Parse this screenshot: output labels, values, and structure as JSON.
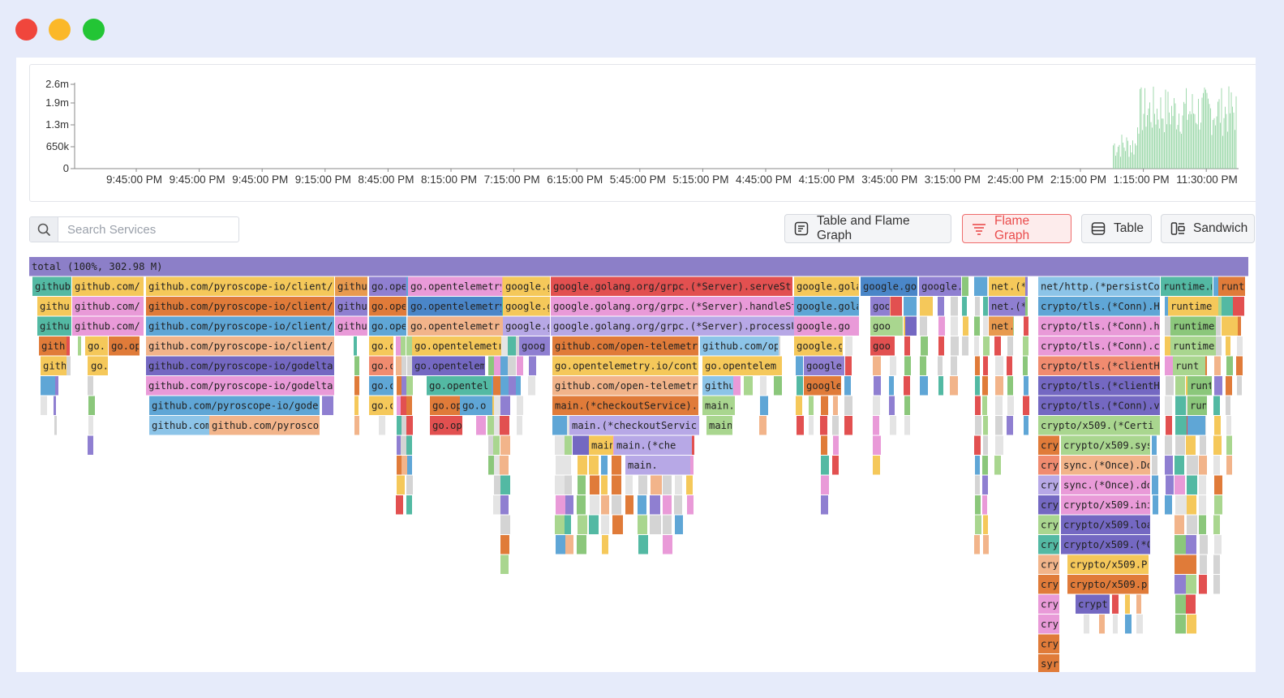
{
  "colors": {
    "active_accent": "#ea4c4c",
    "timeline_bar": "#8fd3a0",
    "total_bar": "#8c7fc8"
  },
  "timeline": {
    "y_ticks": [
      "2.6m",
      "1.9m",
      "1.3m",
      "650k",
      "0"
    ],
    "x_ticks": [
      "9:45:00 PM",
      "9:45:00 PM",
      "9:45:00 PM",
      "9:15:00 PM",
      "8:45:00 PM",
      "8:15:00 PM",
      "7:15:00 PM",
      "6:15:00 PM",
      "5:45:00 PM",
      "5:15:00 PM",
      "4:45:00 PM",
      "4:15:00 PM",
      "3:45:00 PM",
      "3:15:00 PM",
      "2:45:00 PM",
      "2:15:00 PM",
      "1:15:00 PM",
      "11:30:00 PM"
    ]
  },
  "search": {
    "placeholder": "Search Services",
    "icon": "search-icon"
  },
  "view_buttons": [
    {
      "label": "Table and Flame Graph",
      "icon": "table-flame-icon",
      "active": false
    },
    {
      "label": "Flame Graph",
      "icon": "flame-graph-icon",
      "active": true
    },
    {
      "label": "Table",
      "icon": "table-icon",
      "active": false
    },
    {
      "label": "Sandwich",
      "icon": "sandwich-icon",
      "active": false
    }
  ],
  "flamegraph": {
    "total_label": "total (100%, 302.98 M)",
    "labels": [
      "github",
      "github.com/",
      "github.com/pyroscope-io/client/py",
      "githu",
      "go.ope",
      "go.opentelemetry",
      "google.g",
      "google.golang.org/grpc.(*Server).serveStre",
      "google.gola",
      "google.go",
      "google.",
      "net.(*",
      "net/http.(*persistCo",
      "runtime.m",
      "runt",
      "githu",
      "github.com/",
      "github.com/pyroscope-io/client/py",
      "githu",
      "go.ope",
      "go.opentelemetry",
      "google.g",
      "google.golang.org/grpc.(*Server).handleStr",
      "google.gola",
      "goo",
      "net.(*",
      "crypto/tls.(*Conn).H",
      "runtime",
      "githu",
      "github.com/",
      "github.com/pyroscope-io/client/py",
      "githu",
      "go.ope",
      "go.opentelemetr",
      "google.g",
      "google.golang.org/grpc.(*Server).processUn",
      "google.go",
      "goo",
      "net.",
      "crypto/tls.(*Conn).h",
      "runtime",
      "gith",
      "go.",
      "go.op",
      "github.com/pyroscope-io/client/py",
      "go.c",
      "go.opentelemetr",
      "goog",
      "github.com/open-telemetry",
      "github.com/op",
      "google.g",
      "goo",
      "crypto/tls.(*Conn).c",
      "runtime",
      "gith",
      "go.",
      "github.com/pyroscope-io/godeltapr",
      "go.c",
      "go.opentelem",
      "go.opentelemetry.io/contr",
      "go.opentelem",
      "google",
      "crypto/tls.(*clientH",
      "runt",
      "github.com/pyroscope-io/godeltap",
      "go.c",
      "go.opentel",
      "github.com/open-telemetr",
      "githu",
      "google",
      "crypto/tls.(*clientH",
      "runt",
      "github.com/pyroscope-io/godel",
      "go.c",
      "go.op",
      "go.o",
      "main.(*checkoutService).",
      "main.",
      "crypto/tls.(*Conn).v",
      "run",
      "github.com",
      "github.com/pyroscop",
      "go.op",
      "main.(*checkoutServic",
      "main",
      "crypto/x509.(*Certi",
      "main",
      "main.(*che",
      "cry",
      "crypto/x509.sys",
      "main.",
      "cry",
      "sync.(*Once).Do",
      "cry",
      "sync.(*Once).do",
      "cry",
      "crypto/x509.ini",
      "cry",
      "crypto/x509.loa",
      "cry",
      "crypto/x509.(*C",
      "cry",
      "crypto/x509.P",
      "cry",
      "crypto/x509.p",
      "cry",
      "crypt",
      "cry",
      "cry",
      "syr"
    ]
  }
}
